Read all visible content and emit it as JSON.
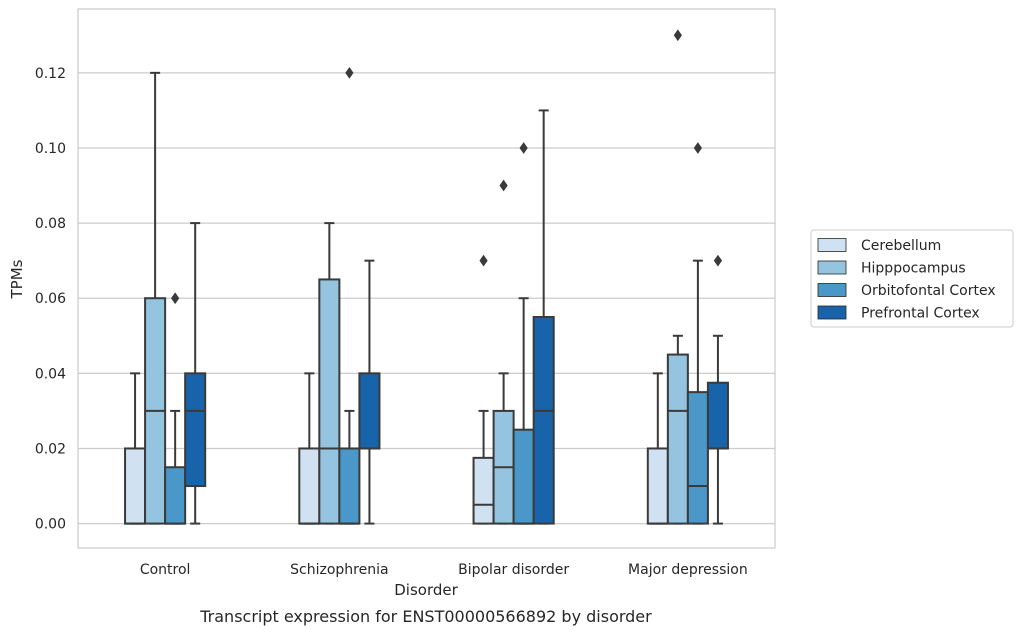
{
  "chart_data": {
    "type": "box",
    "title": "",
    "caption": "Transcript expression for ENST00000566892 by disorder",
    "xlabel": "Disorder",
    "ylabel": "TPMs",
    "ylim": [
      -0.0065,
      0.137
    ],
    "yticks": [
      "0.00",
      "0.02",
      "0.04",
      "0.06",
      "0.08",
      "0.10",
      "0.12"
    ],
    "grid": "horizontal",
    "legend_position": "right",
    "categories": [
      "Control",
      "Schizophrenia",
      "Bipolar disorder",
      "Major depression"
    ],
    "series": [
      {
        "name": "Cerebellum",
        "color": "#d0e1f2",
        "boxes": [
          {
            "whisker_low": 0.0,
            "q1": 0.0,
            "median": 0.0,
            "q3": 0.02,
            "whisker_high": 0.04,
            "outliers": []
          },
          {
            "whisker_low": 0.0,
            "q1": 0.0,
            "median": 0.0,
            "q3": 0.02,
            "whisker_high": 0.04,
            "outliers": []
          },
          {
            "whisker_low": 0.0,
            "q1": 0.0,
            "median": 0.005,
            "q3": 0.0175,
            "whisker_high": 0.03,
            "outliers": [
              0.07
            ]
          },
          {
            "whisker_low": 0.0,
            "q1": 0.0,
            "median": 0.0,
            "q3": 0.02,
            "whisker_high": 0.04,
            "outliers": []
          }
        ]
      },
      {
        "name": "Hipppocampus",
        "color": "#94c4df",
        "boxes": [
          {
            "whisker_low": 0.0,
            "q1": 0.0,
            "median": 0.03,
            "q3": 0.06,
            "whisker_high": 0.12,
            "outliers": []
          },
          {
            "whisker_low": 0.0,
            "q1": 0.0,
            "median": 0.02,
            "q3": 0.065,
            "whisker_high": 0.08,
            "outliers": []
          },
          {
            "whisker_low": 0.0,
            "q1": 0.0,
            "median": 0.015,
            "q3": 0.03,
            "whisker_high": 0.04,
            "outliers": [
              0.09
            ]
          },
          {
            "whisker_low": 0.0,
            "q1": 0.0,
            "median": 0.03,
            "q3": 0.045,
            "whisker_high": 0.05,
            "outliers": [
              0.13
            ]
          }
        ]
      },
      {
        "name": "Orbitofontal Cortex",
        "color": "#4a98c9",
        "boxes": [
          {
            "whisker_low": 0.0,
            "q1": 0.0,
            "median": 0.0,
            "q3": 0.015,
            "whisker_high": 0.03,
            "outliers": [
              0.06
            ]
          },
          {
            "whisker_low": 0.0,
            "q1": 0.0,
            "median": 0.0,
            "q3": 0.02,
            "whisker_high": 0.03,
            "outliers": [
              0.12
            ]
          },
          {
            "whisker_low": 0.0,
            "q1": 0.0,
            "median": 0.0,
            "q3": 0.025,
            "whisker_high": 0.06,
            "outliers": [
              0.1
            ]
          },
          {
            "whisker_low": 0.0,
            "q1": 0.0,
            "median": 0.01,
            "q3": 0.035,
            "whisker_high": 0.07,
            "outliers": [
              0.1
            ]
          }
        ]
      },
      {
        "name": "Prefrontal Cortex",
        "color": "#1764ab",
        "boxes": [
          {
            "whisker_low": 0.0,
            "q1": 0.01,
            "median": 0.03,
            "q3": 0.04,
            "whisker_high": 0.08,
            "outliers": []
          },
          {
            "whisker_low": 0.0,
            "q1": 0.02,
            "median": 0.02,
            "q3": 0.04,
            "whisker_high": 0.07,
            "outliers": []
          },
          {
            "whisker_low": 0.0,
            "q1": 0.0,
            "median": 0.03,
            "q3": 0.055,
            "whisker_high": 0.11,
            "outliers": []
          },
          {
            "whisker_low": 0.0,
            "q1": 0.02,
            "median": 0.02,
            "q3": 0.0375,
            "whisker_high": 0.05,
            "outliers": [
              0.07
            ]
          }
        ]
      }
    ]
  }
}
